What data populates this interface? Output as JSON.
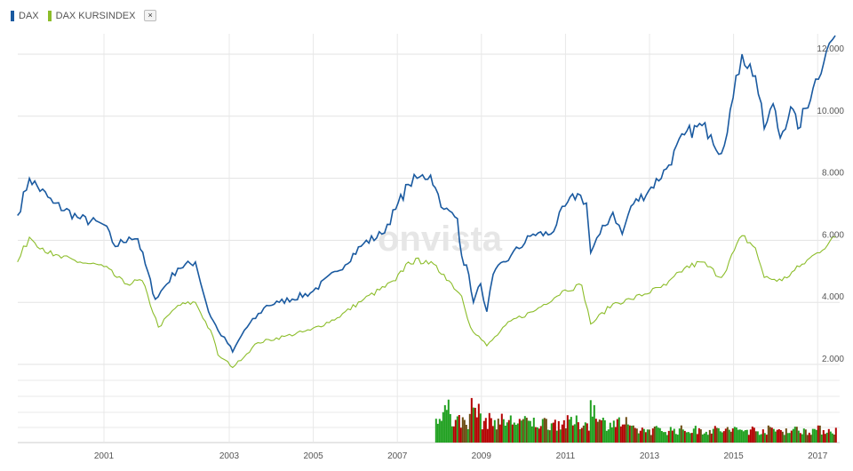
{
  "legend": {
    "items": [
      {
        "label": "DAX",
        "color": "#1a5aa0"
      },
      {
        "label": "DAX KURSINDEX",
        "color": "#8cbd2a"
      }
    ],
    "close_label": "×"
  },
  "watermark": "onvista",
  "chart_data": {
    "type": "line",
    "x_ticks": [
      "2001",
      "2003",
      "2005",
      "2007",
      "2009",
      "2011",
      "2013",
      "2015",
      "2017"
    ],
    "y_ticks": [
      "2.000",
      "4.000",
      "6.000",
      "8.000",
      "10.000",
      "12.000"
    ],
    "ylim": [
      1500,
      12800
    ],
    "grid": true,
    "legend_position": "top-left",
    "series": [
      {
        "name": "DAX",
        "color": "#1a5aa0",
        "points": [
          [
            1999.62,
            6800
          ],
          [
            1999.81,
            8000
          ],
          [
            2000.19,
            7200
          ],
          [
            2000.62,
            6700
          ],
          [
            2001.0,
            6500
          ],
          [
            2001.18,
            5800
          ],
          [
            2001.4,
            6100
          ],
          [
            2001.54,
            6050
          ],
          [
            2001.82,
            4100
          ],
          [
            2002.18,
            5100
          ],
          [
            2002.46,
            5300
          ],
          [
            2002.67,
            3700
          ],
          [
            2002.82,
            3100
          ],
          [
            2003.08,
            2400
          ],
          [
            2003.36,
            3100
          ],
          [
            2003.89,
            3900
          ],
          [
            2004.19,
            4000
          ],
          [
            2004.93,
            4300
          ],
          [
            2005.57,
            5000
          ],
          [
            2006.2,
            5900
          ],
          [
            2006.63,
            6200
          ],
          [
            2006.96,
            7000
          ],
          [
            2007.26,
            7800
          ],
          [
            2007.47,
            8000
          ],
          [
            2007.79,
            8100
          ],
          [
            2007.9,
            7700
          ],
          [
            2008.11,
            7000
          ],
          [
            2008.43,
            6700
          ],
          [
            2008.53,
            5500
          ],
          [
            2008.7,
            4900
          ],
          [
            2008.81,
            4000
          ],
          [
            2008.98,
            4600
          ],
          [
            2009.13,
            3700
          ],
          [
            2009.28,
            4900
          ],
          [
            2009.7,
            5500
          ],
          [
            2010.23,
            6200
          ],
          [
            2010.65,
            6200
          ],
          [
            2010.99,
            7100
          ],
          [
            2011.29,
            7500
          ],
          [
            2011.5,
            7200
          ],
          [
            2011.6,
            5600
          ],
          [
            2011.82,
            6200
          ],
          [
            2012.13,
            6900
          ],
          [
            2012.35,
            6200
          ],
          [
            2012.56,
            7100
          ],
          [
            2012.98,
            7600
          ],
          [
            2013.4,
            8300
          ],
          [
            2013.83,
            9400
          ],
          [
            2014.25,
            9700
          ],
          [
            2014.46,
            9400
          ],
          [
            2014.71,
            8800
          ],
          [
            2014.99,
            10600
          ],
          [
            2015.2,
            12000
          ],
          [
            2015.52,
            11300
          ],
          [
            2015.73,
            9600
          ],
          [
            2015.94,
            10400
          ],
          [
            2016.11,
            9300
          ],
          [
            2016.36,
            10300
          ],
          [
            2016.53,
            9600
          ],
          [
            2016.89,
            10900
          ],
          [
            2017.21,
            12100
          ],
          [
            2017.42,
            12600
          ]
        ]
      },
      {
        "name": "DAX KURSINDEX",
        "color": "#8cbd2a",
        "points": [
          [
            1999.62,
            5300
          ],
          [
            1999.81,
            6100
          ],
          [
            2000.19,
            5500
          ],
          [
            2000.62,
            5300
          ],
          [
            2001.0,
            5150
          ],
          [
            2001.33,
            4600
          ],
          [
            2001.61,
            4700
          ],
          [
            2001.87,
            3200
          ],
          [
            2002.18,
            3900
          ],
          [
            2002.46,
            4000
          ],
          [
            2002.74,
            2900
          ],
          [
            2002.82,
            2300
          ],
          [
            2003.08,
            1900
          ],
          [
            2003.68,
            2700
          ],
          [
            2004.31,
            2900
          ],
          [
            2004.93,
            3100
          ],
          [
            2005.57,
            3500
          ],
          [
            2006.2,
            4100
          ],
          [
            2006.96,
            4700
          ],
          [
            2007.26,
            5300
          ],
          [
            2007.68,
            5350
          ],
          [
            2008.11,
            4900
          ],
          [
            2008.53,
            4200
          ],
          [
            2008.74,
            3200
          ],
          [
            2009.13,
            2600
          ],
          [
            2009.7,
            3400
          ],
          [
            2010.23,
            3700
          ],
          [
            2010.99,
            4400
          ],
          [
            2011.39,
            4550
          ],
          [
            2011.6,
            3300
          ],
          [
            2012.13,
            3950
          ],
          [
            2012.56,
            4100
          ],
          [
            2013.4,
            4550
          ],
          [
            2013.83,
            5100
          ],
          [
            2014.25,
            5300
          ],
          [
            2014.71,
            4800
          ],
          [
            2015.2,
            6150
          ],
          [
            2015.52,
            5750
          ],
          [
            2015.73,
            4800
          ],
          [
            2016.15,
            4700
          ],
          [
            2016.57,
            5150
          ],
          [
            2016.99,
            5600
          ],
          [
            2017.42,
            6100
          ]
        ]
      }
    ],
    "volume": {
      "start": 2007.9,
      "end": 2017.45,
      "colors": {
        "up": "#1fa01f",
        "down": "#b40000",
        "mixed": "#6b4a10"
      }
    }
  }
}
